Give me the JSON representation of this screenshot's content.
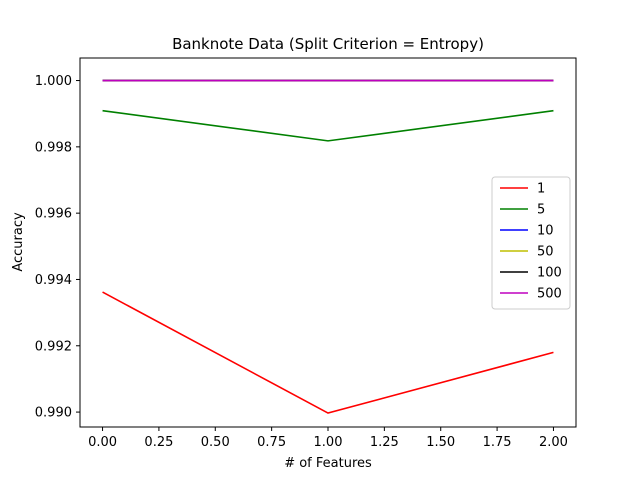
{
  "chart_data": {
    "type": "line",
    "title": "Banknote Data (Split Criterion = Entropy)",
    "xlabel": "# of Features",
    "ylabel": "Accuracy",
    "x": [
      0,
      1,
      2
    ],
    "xlim": [
      -0.1,
      2.1
    ],
    "ylim": [
      0.98955,
      1.00068
    ],
    "xticks": [
      0.0,
      0.25,
      0.5,
      0.75,
      1.0,
      1.25,
      1.5,
      1.75,
      2.0
    ],
    "xtick_labels": [
      "0.00",
      "0.25",
      "0.50",
      "0.75",
      "1.00",
      "1.25",
      "1.50",
      "1.75",
      "2.00"
    ],
    "yticks": [
      0.99,
      0.992,
      0.994,
      0.996,
      0.998,
      1.0
    ],
    "ytick_labels": [
      "0.990",
      "0.992",
      "0.994",
      "0.996",
      "0.998",
      "1.000"
    ],
    "grid": false,
    "legend_position": "center-right",
    "series": [
      {
        "name": "1",
        "color": "#ff0000",
        "values": [
          0.99362,
          0.98997,
          0.9918
        ]
      },
      {
        "name": "5",
        "color": "#008000",
        "values": [
          0.99909,
          0.99818,
          0.99909
        ]
      },
      {
        "name": "10",
        "color": "#0000ff",
        "values": [
          1.0,
          1.0,
          1.0
        ]
      },
      {
        "name": "50",
        "color": "#bfbf00",
        "values": [
          1.0,
          1.0,
          1.0
        ]
      },
      {
        "name": "100",
        "color": "#000000",
        "values": [
          1.0,
          1.0,
          1.0
        ]
      },
      {
        "name": "500",
        "color": "#bf00bf",
        "values": [
          1.0,
          1.0,
          1.0
        ]
      }
    ]
  }
}
